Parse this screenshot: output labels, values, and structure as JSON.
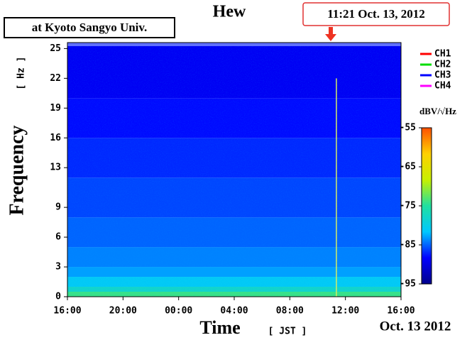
{
  "chart_data": {
    "type": "spectrogram",
    "title": "Hew",
    "station": "at Kyoto Sangyo Univ.",
    "x_label": "Time",
    "x_unit": "[ JST ]",
    "date_label": "Oct. 13 2012",
    "y_label": "Frequency",
    "y_unit": "[ Hz ]",
    "colorbar_label": "dBV/√Hz",
    "xlim": [
      0,
      24
    ],
    "xticks": [
      {
        "value": 0,
        "label": "16:00"
      },
      {
        "value": 4,
        "label": "20:00"
      },
      {
        "value": 8,
        "label": "00:00"
      },
      {
        "value": 12,
        "label": "04:00"
      },
      {
        "value": 16,
        "label": "08:00"
      },
      {
        "value": 20,
        "label": "12:00"
      },
      {
        "value": 24,
        "label": "16:00"
      }
    ],
    "ylim": [
      0,
      25.6
    ],
    "yticks": [
      0,
      3,
      6,
      9,
      13,
      16,
      19,
      22,
      25
    ],
    "clim": [
      -95,
      -55
    ],
    "cticks": [
      -95,
      -85,
      -75,
      -65,
      -55
    ],
    "colormap": [
      "#00008c",
      "#0000ff",
      "#00c8ff",
      "#20e0a0",
      "#c8f000",
      "#ffd000",
      "#ff5000"
    ],
    "band_edges": [
      0,
      0.5,
      1,
      2,
      3,
      5,
      8,
      12,
      16,
      20,
      25.6
    ],
    "levels": [
      -74,
      -78,
      -81,
      -83,
      -84,
      -85,
      -86,
      -87,
      -88,
      -89
    ],
    "event": {
      "label": "11:21 Oct. 13, 2012",
      "x": 19.35
    },
    "legend": [
      {
        "name": "CH1",
        "color": "#ff0000"
      },
      {
        "name": "CH2",
        "color": "#00dd00"
      },
      {
        "name": "CH3",
        "color": "#0000ff"
      },
      {
        "name": "CH4",
        "color": "#ff00ff"
      }
    ]
  }
}
